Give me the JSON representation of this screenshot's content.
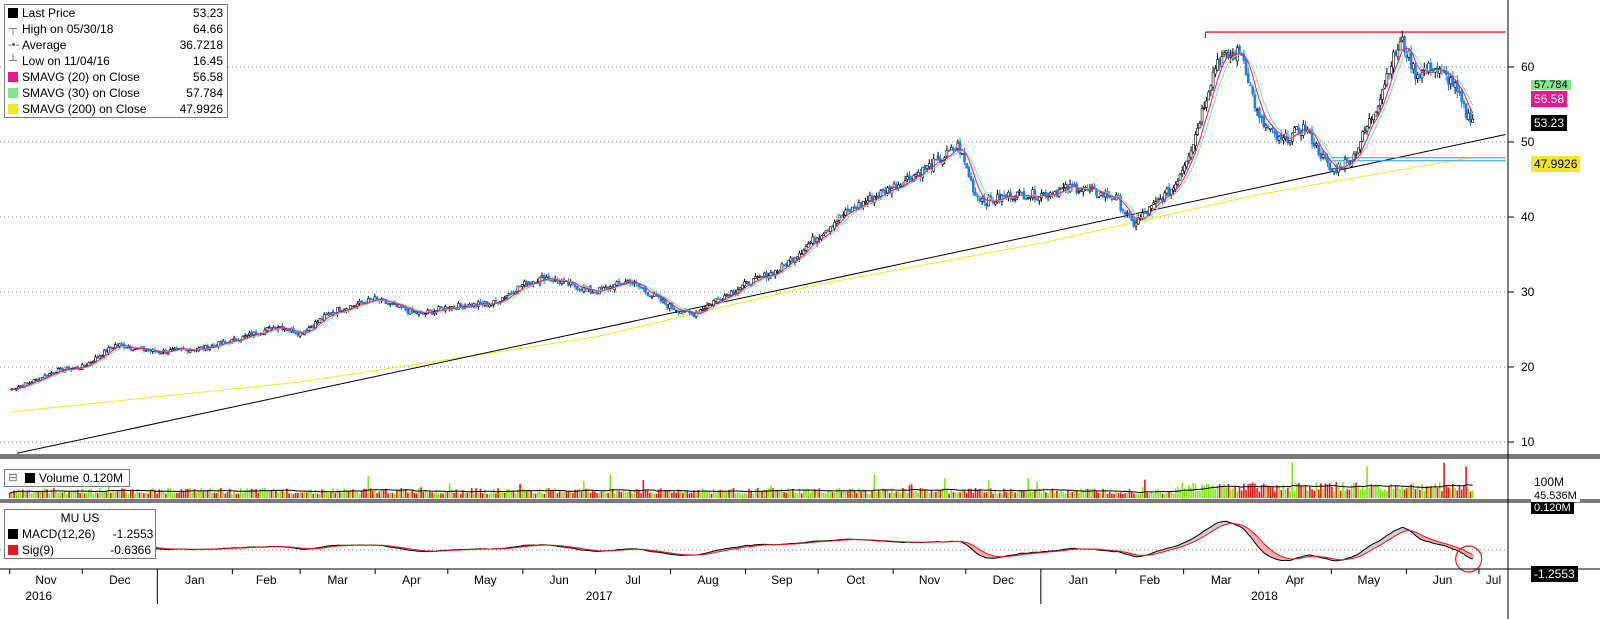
{
  "legend": {
    "last_price": {
      "label": "Last Price",
      "value": "53.23"
    },
    "high": {
      "label": "High on 05/30/18",
      "value": "64.66"
    },
    "average": {
      "label": "Average",
      "value": "36.7218"
    },
    "low": {
      "label": "Low on 11/04/16",
      "value": "16.45"
    },
    "sma20": {
      "label": "SMAVG (20) on Close",
      "value": "56.58"
    },
    "sma30": {
      "label": "SMAVG (30) on Close",
      "value": "57.784"
    },
    "sma200": {
      "label": "SMAVG (200) on Close",
      "value": "47.9926"
    }
  },
  "volume_legend": {
    "label": "Volume",
    "value": "0.120M"
  },
  "macd_legend": {
    "ticker": "MU US",
    "macd": {
      "label": "MACD(12,26)",
      "value": "-1.2553"
    },
    "sig": {
      "label": "Sig(9)",
      "value": "-0.6366"
    }
  },
  "right_tags": {
    "sma30": "57.784",
    "sma20": "56.58",
    "last": "53.23",
    "sma200": "47.9926",
    "vol_100m": "100M",
    "vol_avg": "45.536M",
    "vol_last": "0.120M",
    "macd_last": "-1.2553"
  },
  "colors": {
    "up": "#000000",
    "down": "#1f7fe6",
    "sma20": "#e6198c",
    "sma30": "#7fe68c",
    "sma200": "#f2e62a",
    "high_line": "#d42020",
    "trend_line": "#000000",
    "support_line": "#1fa0e6",
    "vol_up": "#7fe619",
    "vol_down": "#e61919",
    "macd": "#000000",
    "signal": "#e61919",
    "highlight": "#e61919",
    "panel_divider": "#7a7a7a"
  },
  "chart_data": {
    "type": "candlestick",
    "ticker": "MU US",
    "y_axis": {
      "ticks": [
        10,
        20,
        30,
        40,
        50,
        60
      ]
    },
    "months": [
      "Nov",
      "Dec",
      "Jan",
      "Feb",
      "Mar",
      "Apr",
      "May",
      "Jun",
      "Jul",
      "Aug",
      "Sep",
      "Oct",
      "Nov",
      "Dec",
      "Jan",
      "Feb",
      "Mar",
      "Apr",
      "May",
      "Jun",
      "Jul"
    ],
    "years": [
      "2016",
      "2017",
      "2018"
    ],
    "close_anchors": [
      [
        "2016-11-01",
        17.0
      ],
      [
        "2016-11-10",
        18.0
      ],
      [
        "2016-11-20",
        19.5
      ],
      [
        "2016-12-01",
        20.0
      ],
      [
        "2016-12-15",
        23.0
      ],
      [
        "2017-01-01",
        22.0
      ],
      [
        "2017-01-20",
        22.5
      ],
      [
        "2017-02-01",
        23.5
      ],
      [
        "2017-02-20",
        25.5
      ],
      [
        "2017-03-01",
        24.5
      ],
      [
        "2017-03-15",
        27.5
      ],
      [
        "2017-04-01",
        29.0
      ],
      [
        "2017-04-10",
        28.0
      ],
      [
        "2017-04-20",
        27.0
      ],
      [
        "2017-05-01",
        28.0
      ],
      [
        "2017-05-20",
        28.5
      ],
      [
        "2017-06-01",
        31.0
      ],
      [
        "2017-06-10",
        32.0
      ],
      [
        "2017-06-20",
        31.0
      ],
      [
        "2017-07-01",
        30.0
      ],
      [
        "2017-07-15",
        31.5
      ],
      [
        "2017-08-01",
        28.0
      ],
      [
        "2017-08-10",
        27.0
      ],
      [
        "2017-08-20",
        29.0
      ],
      [
        "2017-09-01",
        31.0
      ],
      [
        "2017-09-15",
        33.0
      ],
      [
        "2017-10-01",
        37.5
      ],
      [
        "2017-10-10",
        40.0
      ],
      [
        "2017-10-20",
        42.0
      ],
      [
        "2017-11-01",
        44.0
      ],
      [
        "2017-11-20",
        47.5
      ],
      [
        "2017-11-28",
        49.5
      ],
      [
        "2017-12-05",
        43.0
      ],
      [
        "2017-12-10",
        42.0
      ],
      [
        "2017-12-20",
        43.0
      ],
      [
        "2018-01-01",
        43.0
      ],
      [
        "2018-01-15",
        44.0
      ],
      [
        "2018-02-01",
        42.5
      ],
      [
        "2018-02-08",
        39.0
      ],
      [
        "2018-02-15",
        41.0
      ],
      [
        "2018-02-25",
        44.0
      ],
      [
        "2018-03-05",
        50.0
      ],
      [
        "2018-03-12",
        58.0
      ],
      [
        "2018-03-15",
        61.0
      ],
      [
        "2018-03-25",
        62.0
      ],
      [
        "2018-04-01",
        53.0
      ],
      [
        "2018-04-10",
        50.0
      ],
      [
        "2018-04-20",
        52.0
      ],
      [
        "2018-05-01",
        46.0
      ],
      [
        "2018-05-10",
        48.0
      ],
      [
        "2018-05-20",
        55.0
      ],
      [
        "2018-05-25",
        60.0
      ],
      [
        "2018-05-30",
        63.5
      ],
      [
        "2018-06-05",
        59.0
      ],
      [
        "2018-06-12",
        60.0
      ],
      [
        "2018-06-20",
        58.0
      ],
      [
        "2018-06-26",
        53.5
      ],
      [
        "2018-06-29",
        53.23
      ]
    ],
    "high_line": {
      "value": 64.66,
      "from": "2018-03-10",
      "to": "2018-07-12"
    },
    "support_line": {
      "value": 47.9,
      "from": "2018-05-01",
      "to": "2018-07-12"
    },
    "trend_line": {
      "from": [
        "2016-11-04",
        8.5
      ],
      "to": [
        "2018-07-12",
        51.0
      ]
    },
    "sma200_anchors": [
      [
        "2016-11-01",
        14.0
      ],
      [
        "2017-03-01",
        18.0
      ],
      [
        "2017-07-01",
        24.0
      ],
      [
        "2017-10-01",
        31.0
      ],
      [
        "2018-01-01",
        36.5
      ],
      [
        "2018-04-01",
        43.0
      ],
      [
        "2018-06-29",
        47.99
      ]
    ],
    "volume": {
      "unit": "M",
      "avg_value": 45.536,
      "last_value": 0.12
    },
    "macd": {
      "macd_last": -1.2553,
      "signal_last": -0.6366
    }
  }
}
